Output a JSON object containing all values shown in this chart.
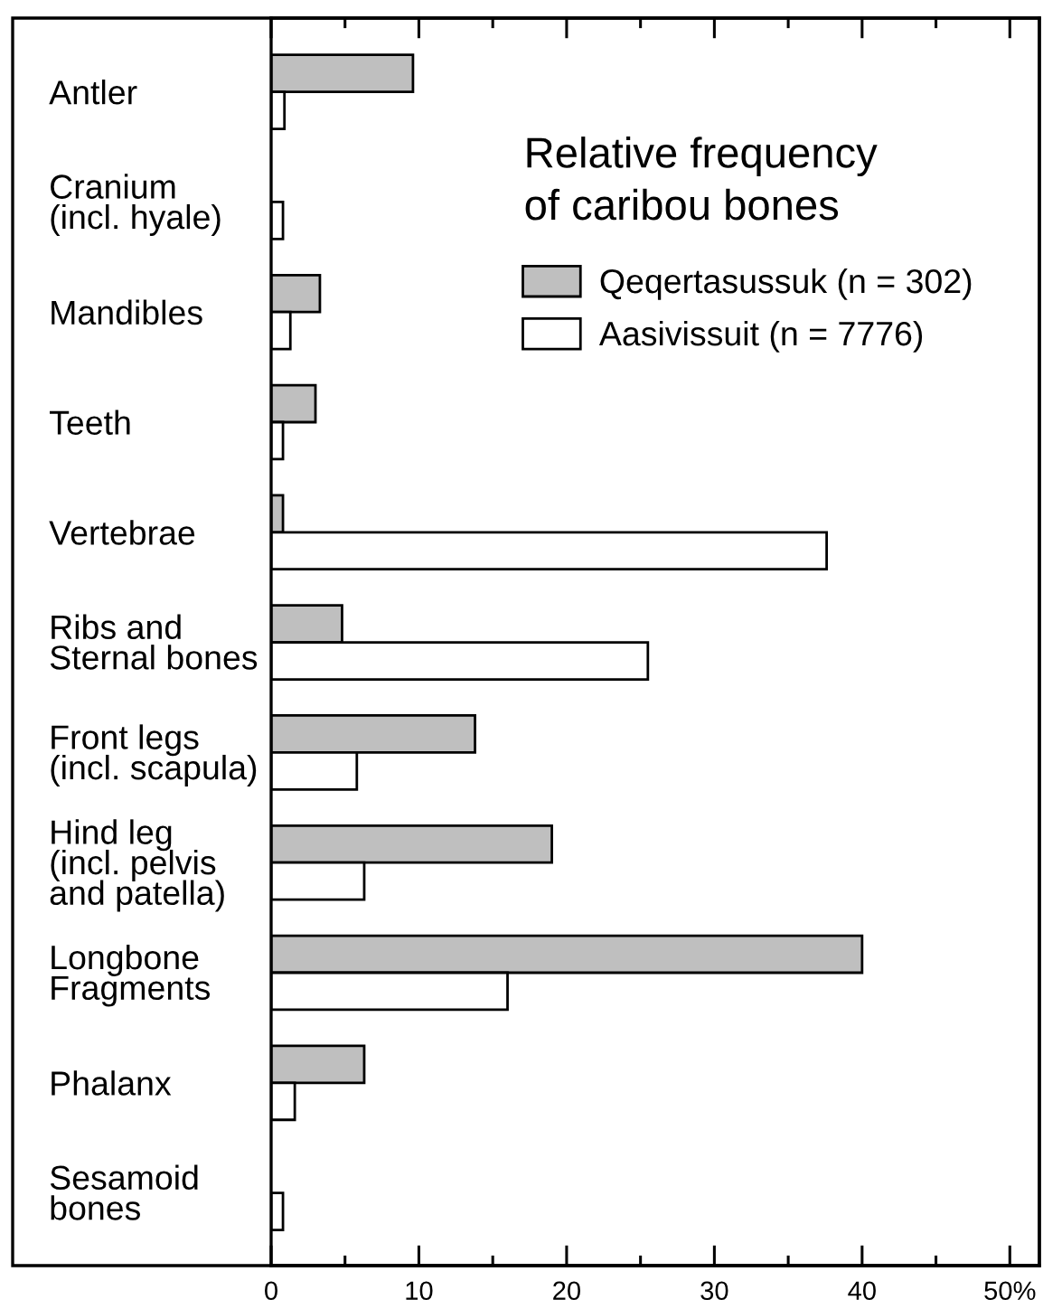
{
  "chart_data": {
    "type": "bar",
    "orientation": "horizontal",
    "title": "Relative frequency\nof caribou bones",
    "categories": [
      "Antler",
      "Cranium\n(incl. hyale)",
      "Mandibles",
      "Teeth",
      "Vertebrae",
      "Ribs and\nSternal bones",
      "Front legs\n(incl. scapula)",
      "Hind leg\n(incl. pelvis\nand patella)",
      "Longbone\nFragments",
      "Phalanx",
      "Sesamoid\nbones"
    ],
    "series": [
      {
        "name": "Qeqertasussuk (n = 302)",
        "color": "#bfbfbf",
        "values": [
          9.6,
          null,
          3.3,
          3.0,
          0.8,
          4.8,
          13.8,
          19.0,
          40.0,
          6.3,
          null
        ]
      },
      {
        "name": "Aasivissuit (n = 7776)",
        "color": "#ffffff",
        "values": [
          0.9,
          0.8,
          1.3,
          0.8,
          37.6,
          25.5,
          5.8,
          6.3,
          16.0,
          1.6,
          0.8
        ]
      }
    ],
    "xlim": [
      0,
      52
    ],
    "xticks": [
      0,
      {
        "value": 5,
        "label": null
      },
      10,
      {
        "value": 15,
        "label": null
      },
      20,
      {
        "value": 25,
        "label": null
      },
      30,
      {
        "value": 35,
        "label": null
      },
      40,
      {
        "value": 45,
        "label": null
      },
      {
        "value": 50,
        "label": "50%"
      }
    ],
    "legend": "top right"
  }
}
